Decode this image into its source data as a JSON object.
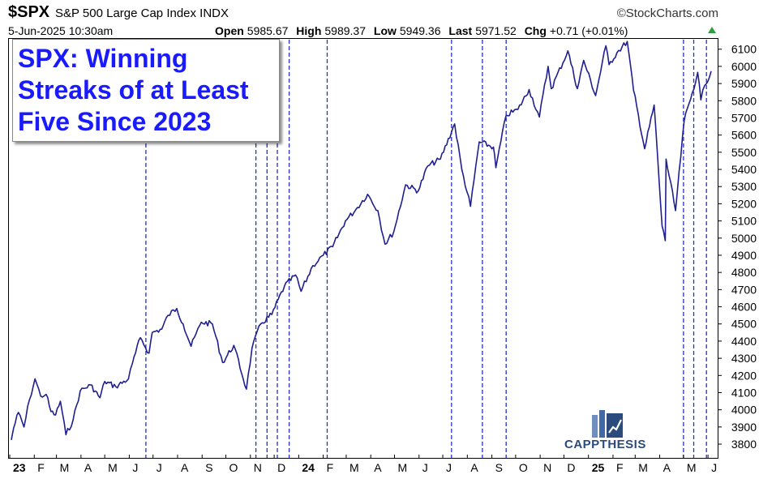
{
  "header": {
    "symbol": "$SPX",
    "name": "S&P 500 Large Cap Index INDX",
    "brand": "©StockCharts.com",
    "date": "5-Jun-2025 10:30am",
    "open_label": "Open",
    "open": "5985.67",
    "high_label": "High",
    "high": "5989.37",
    "low_label": "Low",
    "low": "5949.36",
    "last_label": "Last",
    "last": "5971.52",
    "chg_label": "Chg",
    "chg": "+0.71 (+0.01%)"
  },
  "logo": {
    "text": "CAPPTHESIS"
  },
  "colors": {
    "line": "#1f1f8f",
    "marker": "#1f2fd6",
    "title": "#1a1aff"
  },
  "chart_data": {
    "type": "line",
    "title": "SPX: Winning Streaks of at Least Five Since 2023",
    "ylim": [
      3720,
      6160
    ],
    "yticks": [
      3800,
      3900,
      4000,
      4100,
      4200,
      4300,
      4400,
      4500,
      4600,
      4700,
      4800,
      4900,
      5000,
      5100,
      5200,
      5300,
      5400,
      5500,
      5600,
      5700,
      5800,
      5900,
      6000,
      6100
    ],
    "x_ticks": [
      {
        "label": "23",
        "month": 0,
        "bold": true
      },
      {
        "label": "F",
        "month": 1
      },
      {
        "label": "M",
        "month": 2
      },
      {
        "label": "A",
        "month": 3
      },
      {
        "label": "M",
        "month": 4
      },
      {
        "label": "J",
        "month": 5
      },
      {
        "label": "J",
        "month": 6
      },
      {
        "label": "A",
        "month": 7
      },
      {
        "label": "S",
        "month": 8
      },
      {
        "label": "O",
        "month": 9
      },
      {
        "label": "N",
        "month": 10
      },
      {
        "label": "D",
        "month": 11
      },
      {
        "label": "24",
        "month": 12,
        "bold": true
      },
      {
        "label": "F",
        "month": 13
      },
      {
        "label": "M",
        "month": 14
      },
      {
        "label": "A",
        "month": 15
      },
      {
        "label": "M",
        "month": 16
      },
      {
        "label": "J",
        "month": 17
      },
      {
        "label": "J",
        "month": 18
      },
      {
        "label": "A",
        "month": 19
      },
      {
        "label": "S",
        "month": 20
      },
      {
        "label": "O",
        "month": 21
      },
      {
        "label": "N",
        "month": 22
      },
      {
        "label": "D",
        "month": 23
      },
      {
        "label": "25",
        "month": 24,
        "bold": true
      },
      {
        "label": "F",
        "month": 25
      },
      {
        "label": "M",
        "month": 26
      },
      {
        "label": "A",
        "month": 27
      },
      {
        "label": "M",
        "month": 28
      },
      {
        "label": "J",
        "month": 29
      }
    ],
    "streak_markers": [
      "2023-06-22",
      "2023-11-08",
      "2023-11-22",
      "2023-12-05",
      "2023-12-20",
      "2024-02-06",
      "2024-07-12",
      "2024-08-20",
      "2024-09-19",
      "2025-05-01",
      "2025-05-14",
      "2025-05-30"
    ],
    "series": [
      {
        "points": [
          [
            "2023-01-03",
            3825
          ],
          [
            "2023-01-06",
            3895
          ],
          [
            "2023-01-12",
            3985
          ],
          [
            "2023-01-19",
            3900
          ],
          [
            "2023-01-26",
            4060
          ],
          [
            "2023-02-02",
            4180
          ],
          [
            "2023-02-09",
            4080
          ],
          [
            "2023-02-16",
            4090
          ],
          [
            "2023-02-22",
            3990
          ],
          [
            "2023-02-28",
            3970
          ],
          [
            "2023-03-06",
            4050
          ],
          [
            "2023-03-13",
            3855
          ],
          [
            "2023-03-22",
            3940
          ],
          [
            "2023-03-31",
            4110
          ],
          [
            "2023-04-13",
            4145
          ],
          [
            "2023-04-25",
            4070
          ],
          [
            "2023-05-01",
            4165
          ],
          [
            "2023-05-15",
            4135
          ],
          [
            "2023-05-31",
            4180
          ],
          [
            "2023-06-05",
            4270
          ],
          [
            "2023-06-15",
            4420
          ],
          [
            "2023-06-26",
            4330
          ],
          [
            "2023-06-30",
            4450
          ],
          [
            "2023-07-12",
            4470
          ],
          [
            "2023-07-20",
            4550
          ],
          [
            "2023-07-31",
            4590
          ],
          [
            "2023-08-08",
            4500
          ],
          [
            "2023-08-18",
            4370
          ],
          [
            "2023-08-31",
            4510
          ],
          [
            "2023-09-14",
            4500
          ],
          [
            "2023-09-27",
            4275
          ],
          [
            "2023-10-11",
            4375
          ],
          [
            "2023-10-27",
            4120
          ],
          [
            "2023-11-03",
            4360
          ],
          [
            "2023-11-14",
            4500
          ],
          [
            "2023-11-28",
            4555
          ],
          [
            "2023-12-14",
            4720
          ],
          [
            "2023-12-28",
            4785
          ],
          [
            "2024-01-04",
            4690
          ],
          [
            "2024-01-19",
            4840
          ],
          [
            "2024-02-01",
            4900
          ],
          [
            "2024-02-13",
            4950
          ],
          [
            "2024-02-29",
            5100
          ],
          [
            "2024-03-13",
            5165
          ],
          [
            "2024-03-28",
            5255
          ],
          [
            "2024-04-10",
            5160
          ],
          [
            "2024-04-19",
            4965
          ],
          [
            "2024-04-30",
            5035
          ],
          [
            "2024-05-15",
            5310
          ],
          [
            "2024-05-31",
            5275
          ],
          [
            "2024-06-12",
            5420
          ],
          [
            "2024-06-28",
            5460
          ],
          [
            "2024-07-16",
            5665
          ],
          [
            "2024-07-25",
            5400
          ],
          [
            "2024-08-05",
            5185
          ],
          [
            "2024-08-16",
            5560
          ],
          [
            "2024-09-03",
            5530
          ],
          [
            "2024-09-06",
            5410
          ],
          [
            "2024-09-19",
            5715
          ],
          [
            "2024-10-04",
            5750
          ],
          [
            "2024-10-18",
            5865
          ],
          [
            "2024-10-31",
            5705
          ],
          [
            "2024-11-11",
            6000
          ],
          [
            "2024-11-15",
            5870
          ],
          [
            "2024-12-06",
            6090
          ],
          [
            "2024-12-18",
            5870
          ],
          [
            "2024-12-26",
            6035
          ],
          [
            "2025-01-10",
            5830
          ],
          [
            "2025-01-23",
            6120
          ],
          [
            "2025-01-27",
            6010
          ],
          [
            "2025-02-06",
            6080
          ],
          [
            "2025-02-19",
            6145
          ],
          [
            "2025-02-27",
            5860
          ],
          [
            "2025-03-13",
            5520
          ],
          [
            "2025-03-25",
            5775
          ],
          [
            "2025-04-04",
            5070
          ],
          [
            "2025-04-08",
            4985
          ],
          [
            "2025-04-09",
            5460
          ],
          [
            "2025-04-21",
            5160
          ],
          [
            "2025-05-02",
            5685
          ],
          [
            "2025-05-12",
            5845
          ],
          [
            "2025-05-19",
            5965
          ],
          [
            "2025-05-23",
            5805
          ],
          [
            "2025-05-28",
            5890
          ],
          [
            "2025-06-05",
            5972
          ]
        ]
      }
    ]
  }
}
